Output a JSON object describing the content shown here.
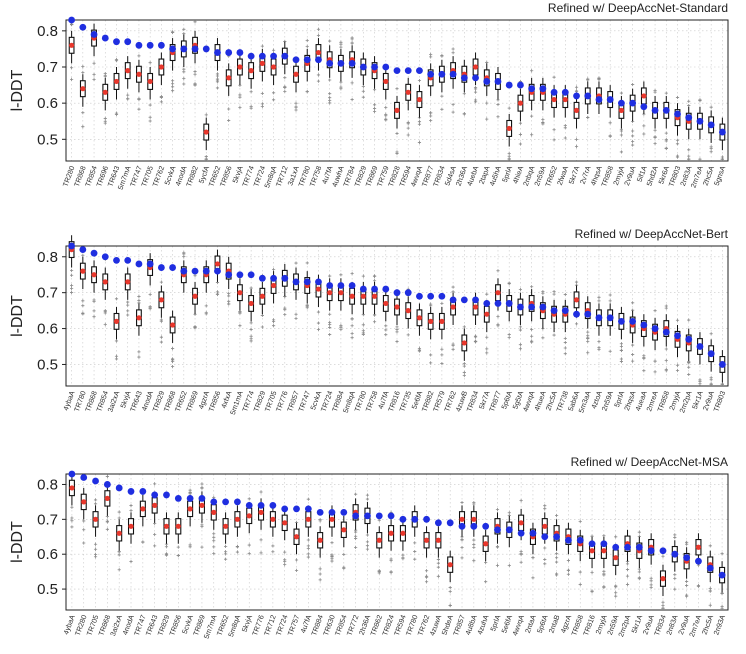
{
  "chart_data": [
    {
      "type": "box",
      "title": "Refined w/ DeepAccNet-Standard",
      "ylabel": "l-DDT",
      "ylim": [
        0.44,
        0.83
      ],
      "yticks": [
        "0.5",
        "0.6",
        "0.7",
        "0.8"
      ],
      "ytick_values": [
        0.5,
        0.6,
        0.7,
        0.8
      ],
      "grid": true,
      "categories": [
        "TR280",
        "TR868",
        "TR854",
        "TR696",
        "TR643",
        "5m7mA",
        "TR747",
        "TR705",
        "TR762",
        "5cvkA",
        "4nodA",
        "TR882",
        "5ycfA",
        "TR652",
        "TR856",
        "5kvjA",
        "TR774",
        "TR724",
        "5m8qA",
        "TR712",
        "3a1xA",
        "TR780",
        "TR758",
        "4u7fA",
        "4uwhA",
        "TR784",
        "TR829",
        "TR869",
        "TR759",
        "TR828",
        "TR594",
        "4wvqA",
        "TR877",
        "TR834",
        "5d4sA",
        "2h36A",
        "4uebA",
        "2tapA",
        "4u5hA",
        "5prlA",
        "4hieA",
        "2nbqA",
        "2n59A",
        "TR652",
        "2fwaA",
        "5kr7A",
        "2v7rA",
        "4hqsA",
        "TR858",
        "2myjA",
        "2v9uA",
        "5if1A",
        "5hd2A",
        "5kr6A",
        "TR803",
        "2n83A",
        "2m7eA",
        "2hc5A",
        "5gnsA"
      ],
      "medians": [
        0.76,
        0.64,
        0.78,
        0.63,
        0.66,
        0.69,
        0.68,
        0.66,
        0.7,
        0.74,
        0.75,
        0.76,
        0.52,
        0.74,
        0.67,
        0.7,
        0.69,
        0.71,
        0.7,
        0.73,
        0.68,
        0.71,
        0.74,
        0.72,
        0.71,
        0.72,
        0.7,
        0.69,
        0.66,
        0.58,
        0.63,
        0.61,
        0.67,
        0.68,
        0.69,
        0.68,
        0.7,
        0.67,
        0.66,
        0.53,
        0.6,
        0.63,
        0.63,
        0.61,
        0.61,
        0.58,
        0.62,
        0.62,
        0.61,
        0.58,
        0.6,
        0.62,
        0.58,
        0.58,
        0.56,
        0.55,
        0.55,
        0.54,
        0.52
      ],
      "refined": [
        0.83,
        0.81,
        0.79,
        0.78,
        0.77,
        0.77,
        0.76,
        0.76,
        0.76,
        0.75,
        0.75,
        0.75,
        0.75,
        0.74,
        0.74,
        0.74,
        0.73,
        0.73,
        0.73,
        0.73,
        0.72,
        0.72,
        0.72,
        0.71,
        0.71,
        0.71,
        0.7,
        0.7,
        0.7,
        0.69,
        0.69,
        0.69,
        0.68,
        0.68,
        0.68,
        0.67,
        0.67,
        0.66,
        0.66,
        0.65,
        0.65,
        0.64,
        0.64,
        0.63,
        0.63,
        0.62,
        0.62,
        0.61,
        0.61,
        0.6,
        0.6,
        0.59,
        0.58,
        0.58,
        0.57,
        0.56,
        0.55,
        0.54,
        0.52
      ],
      "colors": {
        "median": "#e8372c",
        "refined": "#1f2ee0",
        "box": "#111111",
        "outlier": "#8a8a8a"
      }
    },
    {
      "type": "box",
      "title": "Refined w/ DeepAccNet-Bert",
      "ylabel": "l-DDT",
      "ylim": [
        0.44,
        0.83
      ],
      "yticks": [
        "0.5",
        "0.6",
        "0.7",
        "0.8"
      ],
      "ytick_values": [
        0.5,
        0.6,
        0.7,
        0.8
      ],
      "grid": true,
      "categories": [
        "4ybaA",
        "TR780",
        "TR868",
        "TR854",
        "3ai2xA",
        "5kvjA",
        "TR643",
        "4nodA",
        "TR829",
        "TR868",
        "TR652",
        "TR869",
        "4gzrA",
        "TR856",
        "4xfxA",
        "5m1mA",
        "TR774",
        "TR829",
        "TR705",
        "TR776",
        "TR857",
        "TR747",
        "5cvkA",
        "TR724",
        "TR884",
        "5m8qA",
        "TR780",
        "TR758",
        "4u7fA",
        "TR816",
        "TR735",
        "5e6fA",
        "TR882",
        "TR579",
        "TR762",
        "4zuwB",
        "TR834",
        "5kr7A",
        "TR877",
        "5p6tA",
        "5g5tA",
        "4wvqA",
        "4hueA",
        "2hc5A",
        "TR738",
        "5ab6A",
        "5m3aA",
        "4ztoA",
        "2n59A",
        "5prlA",
        "2hqsA",
        "4ueaA",
        "2mreA",
        "TR858",
        "2myjA",
        "2m2pA",
        "5kr1A",
        "2v9uA",
        "TR803"
      ],
      "medians": [
        0.82,
        0.76,
        0.75,
        0.73,
        0.62,
        0.73,
        0.63,
        0.77,
        0.68,
        0.61,
        0.75,
        0.69,
        0.75,
        0.78,
        0.76,
        0.7,
        0.67,
        0.69,
        0.72,
        0.74,
        0.73,
        0.72,
        0.71,
        0.7,
        0.7,
        0.69,
        0.69,
        0.69,
        0.67,
        0.66,
        0.65,
        0.63,
        0.62,
        0.62,
        0.66,
        0.56,
        0.66,
        0.64,
        0.7,
        0.67,
        0.66,
        0.67,
        0.65,
        0.64,
        0.64,
        0.68,
        0.65,
        0.63,
        0.63,
        0.62,
        0.61,
        0.6,
        0.59,
        0.6,
        0.57,
        0.56,
        0.55,
        0.53,
        0.5
      ],
      "refined": [
        0.83,
        0.82,
        0.81,
        0.8,
        0.79,
        0.79,
        0.78,
        0.78,
        0.77,
        0.77,
        0.76,
        0.76,
        0.76,
        0.76,
        0.75,
        0.75,
        0.75,
        0.74,
        0.74,
        0.74,
        0.73,
        0.73,
        0.73,
        0.72,
        0.72,
        0.72,
        0.71,
        0.71,
        0.71,
        0.7,
        0.7,
        0.69,
        0.69,
        0.69,
        0.68,
        0.68,
        0.68,
        0.67,
        0.67,
        0.67,
        0.66,
        0.66,
        0.66,
        0.65,
        0.65,
        0.64,
        0.64,
        0.63,
        0.63,
        0.62,
        0.62,
        0.61,
        0.6,
        0.59,
        0.58,
        0.57,
        0.55,
        0.53,
        0.5
      ],
      "colors": {
        "median": "#e8372c",
        "refined": "#1f2ee0",
        "box": "#111111",
        "outlier": "#8a8a8a"
      }
    },
    {
      "type": "box",
      "title": "Refined w/ DeepAccNet-MSA",
      "ylabel": "l-DDT",
      "ylim": [
        0.44,
        0.83
      ],
      "yticks": [
        "0.5",
        "0.6",
        "0.7",
        "0.8"
      ],
      "ytick_values": [
        0.5,
        0.6,
        0.7,
        0.8
      ],
      "grid": true,
      "categories": [
        "4ybaA",
        "TR280",
        "TR705",
        "TR868",
        "3ai2xA",
        "4nodA",
        "TR747",
        "TR643",
        "TR829",
        "TR856",
        "5cvkA",
        "TR869",
        "5m7mA",
        "TR652",
        "5m8qA",
        "5kvjA",
        "TR776",
        "TR712",
        "TR724",
        "TR757",
        "4u7fA",
        "TR884",
        "TR630",
        "TR854",
        "TR772",
        "2h36A",
        "TR862",
        "TR824",
        "TR594",
        "TR780",
        "TR762",
        "4zuwA",
        "5hdeA",
        "TR857",
        "4u8bA",
        "4zuhA",
        "5prlA",
        "5e6fA",
        "4wvqA",
        "2ntaA",
        "5p6tA",
        "2ntaB",
        "4gzrA",
        "TR858",
        "TR816",
        "2myjA",
        "2n59A",
        "2m2pA",
        "5kr1A",
        "2v9uA",
        "TR834",
        "2n83A",
        "2v9uA",
        "2m7eA",
        "2hc5A",
        "2n93A"
      ],
      "medians": [
        0.79,
        0.75,
        0.7,
        0.76,
        0.66,
        0.68,
        0.73,
        0.74,
        0.68,
        0.68,
        0.73,
        0.74,
        0.72,
        0.68,
        0.7,
        0.71,
        0.72,
        0.7,
        0.69,
        0.65,
        0.7,
        0.64,
        0.7,
        0.67,
        0.72,
        0.71,
        0.64,
        0.66,
        0.66,
        0.7,
        0.64,
        0.64,
        0.57,
        0.7,
        0.7,
        0.63,
        0.68,
        0.67,
        0.69,
        0.65,
        0.68,
        0.66,
        0.65,
        0.63,
        0.61,
        0.61,
        0.59,
        0.63,
        0.61,
        0.62,
        0.53,
        0.6,
        0.58,
        0.62,
        0.57,
        0.54
      ],
      "refined": [
        0.83,
        0.82,
        0.81,
        0.8,
        0.79,
        0.78,
        0.78,
        0.77,
        0.77,
        0.76,
        0.76,
        0.76,
        0.75,
        0.75,
        0.75,
        0.74,
        0.74,
        0.74,
        0.73,
        0.73,
        0.73,
        0.72,
        0.72,
        0.72,
        0.71,
        0.71,
        0.71,
        0.71,
        0.7,
        0.7,
        0.7,
        0.69,
        0.69,
        0.68,
        0.68,
        0.68,
        0.67,
        0.67,
        0.66,
        0.66,
        0.65,
        0.65,
        0.64,
        0.64,
        0.63,
        0.63,
        0.62,
        0.62,
        0.62,
        0.61,
        0.61,
        0.6,
        0.59,
        0.58,
        0.56,
        0.54
      ],
      "colors": {
        "median": "#e8372c",
        "refined": "#1f2ee0",
        "box": "#111111",
        "outlier": "#8a8a8a"
      }
    }
  ]
}
